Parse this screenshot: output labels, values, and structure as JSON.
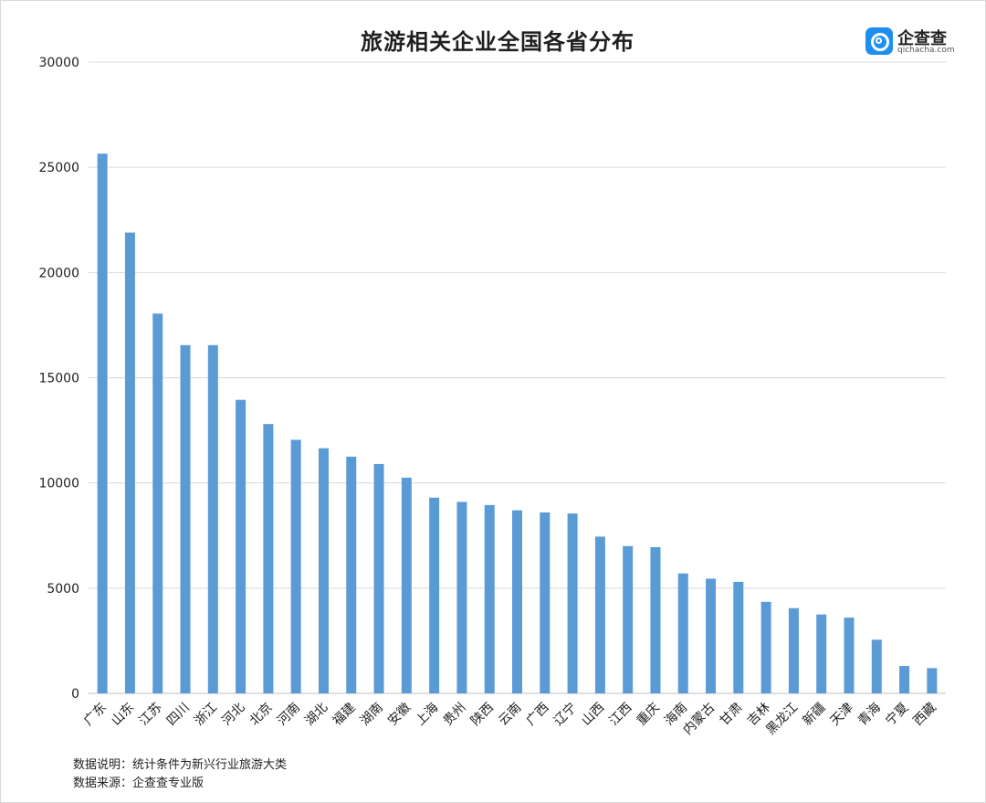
{
  "chart_data": {
    "type": "bar",
    "title": "旅游相关企业全国各省分布",
    "xlabel": "",
    "ylabel": "",
    "ylim": [
      0,
      30000
    ],
    "yticks": [
      0,
      5000,
      10000,
      15000,
      20000,
      25000,
      30000
    ],
    "grid": true,
    "color": "#5b9bd5",
    "categories": [
      "广东",
      "山东",
      "江苏",
      "四川",
      "浙江",
      "河北",
      "北京",
      "河南",
      "湖北",
      "福建",
      "湖南",
      "安徽",
      "上海",
      "贵州",
      "陕西",
      "云南",
      "广西",
      "辽宁",
      "山西",
      "江西",
      "重庆",
      "海南",
      "内蒙古",
      "甘肃",
      "吉林",
      "黑龙江",
      "新疆",
      "天津",
      "青海",
      "宁夏",
      "西藏"
    ],
    "values": [
      25650,
      21900,
      18050,
      16550,
      16550,
      13950,
      12800,
      12050,
      11650,
      11250,
      10900,
      10250,
      9300,
      9100,
      8950,
      8700,
      8600,
      8550,
      7450,
      7000,
      6950,
      5700,
      5450,
      5300,
      4350,
      4050,
      3750,
      3600,
      2550,
      1300,
      1200
    ]
  },
  "brand": {
    "name": "企查查",
    "domain": "qichacha.com"
  },
  "notes": {
    "description": "数据说明：统计条件为新兴行业旅游大类",
    "source": "数据来源：企查查专业版"
  }
}
